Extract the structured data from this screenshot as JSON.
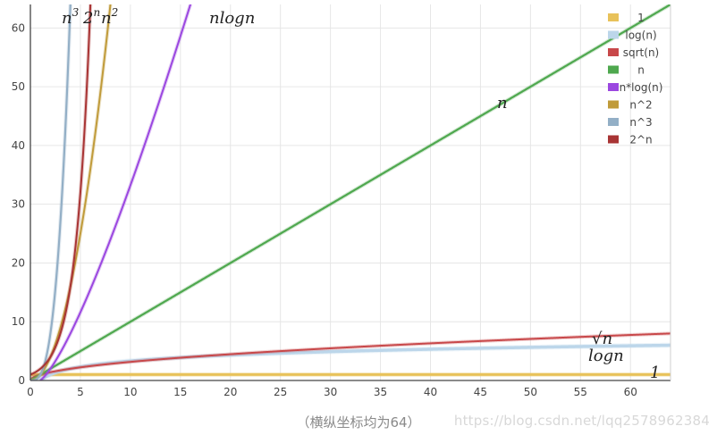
{
  "chart_data": {
    "type": "line",
    "xlim": [
      0,
      64
    ],
    "ylim": [
      0,
      64
    ],
    "x_ticks": [
      "0",
      "5",
      "10",
      "15",
      "20",
      "25",
      "30",
      "35",
      "40",
      "45",
      "50",
      "55",
      "60"
    ],
    "y_ticks": [
      "0",
      "10",
      "20",
      "30",
      "40",
      "50",
      "60"
    ],
    "grid": true,
    "legend_position": "top-right",
    "series": [
      {
        "name": "1",
        "formula": "1",
        "color": "#e8c25a",
        "curve_label": "1"
      },
      {
        "name": "log(n)",
        "formula": "log2(n)",
        "color": "#bcd6ea",
        "curve_label": "logn"
      },
      {
        "name": "sqrt(n)",
        "formula": "sqrt(n)",
        "color": "#c8484a",
        "curve_label": "√n"
      },
      {
        "name": "n",
        "formula": "n",
        "color": "#4fa84f",
        "curve_label": "n"
      },
      {
        "name": "n*log(n)",
        "formula": "n*log2(n)",
        "color": "#9b47e0",
        "curve_label": "nlogn"
      },
      {
        "name": "n^2",
        "formula": "n^2",
        "color": "#c09b3a",
        "curve_label": "n²"
      },
      {
        "name": "n^3",
        "formula": "n^3",
        "color": "#93afc6",
        "curve_label": "n³"
      },
      {
        "name": "2^n",
        "formula": "2^n",
        "color": "#a83434",
        "curve_label": "2ⁿ"
      }
    ]
  },
  "caption": "（横纵坐标均为64）",
  "watermark": "https://blog.csdn.net/lqq2578962384"
}
